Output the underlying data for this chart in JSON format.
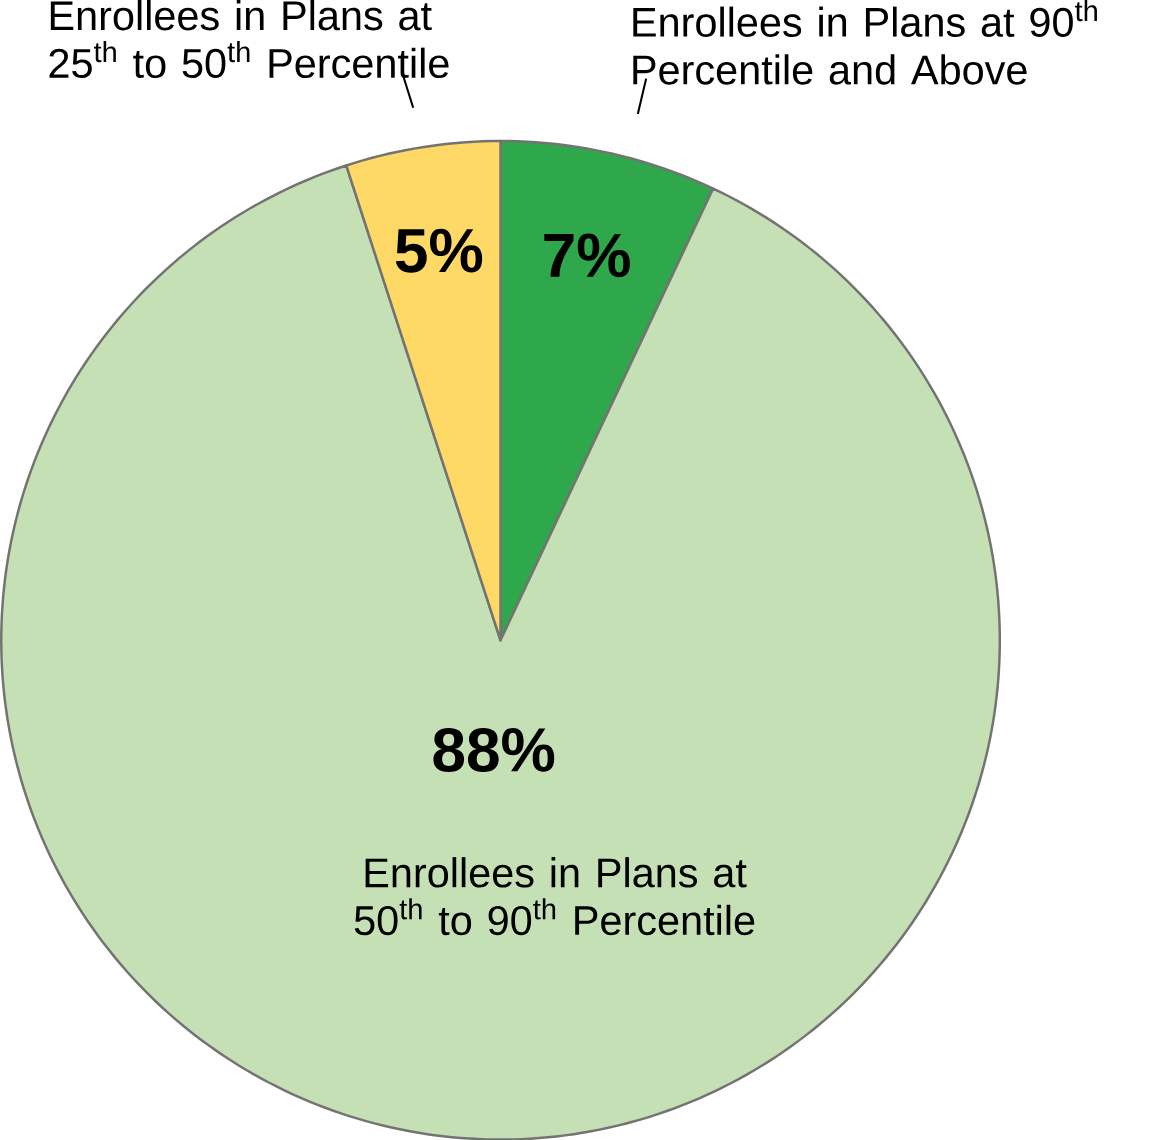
{
  "chart_data": {
    "type": "pie",
    "categories": [
      "Enrollees in Plans at 90$^{th}$ Percentile and Above",
      "Enrollees in Plans at 50$^{th}$ to 90$^{th}$ Percentile",
      "Enrollees in Plans at 25$^{th}$ to 50$^{th}$ Percentile"
    ],
    "values": [
      7,
      88,
      5
    ],
    "value_labels": [
      "7%",
      "88%",
      "5%"
    ],
    "colors": [
      "#2ea84a",
      "#c5e0b4",
      "#ffd966"
    ]
  }
}
